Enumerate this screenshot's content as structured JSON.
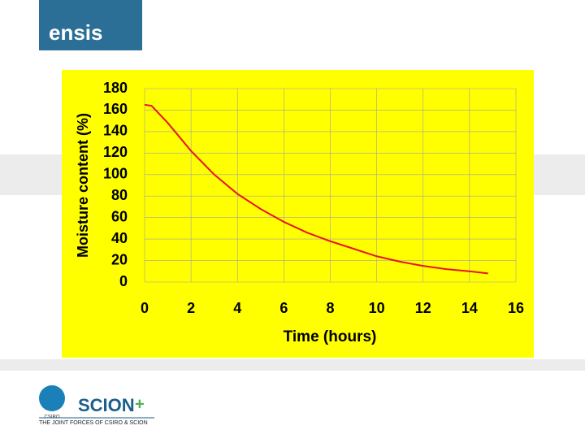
{
  "brand": {
    "title": "ensis",
    "logo_left": "CSIRO",
    "logo_right": "SCION",
    "tagline": "THE JOINT FORCES OF CSIRO & SCION"
  },
  "chart_data": {
    "type": "line",
    "x_label": "Time (hours)",
    "y_label": "Moisture content (%)",
    "x": [
      0,
      0.3,
      1,
      2,
      3,
      4,
      5,
      6,
      7,
      8,
      9,
      10,
      11,
      12,
      13,
      14,
      14.8
    ],
    "series": [
      {
        "name": "Moisture content",
        "color": "#e8141e",
        "values": [
          165,
          164,
          148,
          122,
          100,
          82,
          68,
          56,
          46,
          38,
          31,
          24,
          19,
          15,
          12,
          10,
          8
        ]
      }
    ],
    "xlim": [
      0,
      16
    ],
    "xticks": [
      0,
      2,
      4,
      6,
      8,
      10,
      12,
      14,
      16
    ],
    "ylim": [
      0,
      180
    ],
    "yticks": [
      0,
      20,
      40,
      60,
      80,
      100,
      120,
      140,
      160,
      180
    ],
    "grid": true,
    "background": "#ffff00"
  }
}
